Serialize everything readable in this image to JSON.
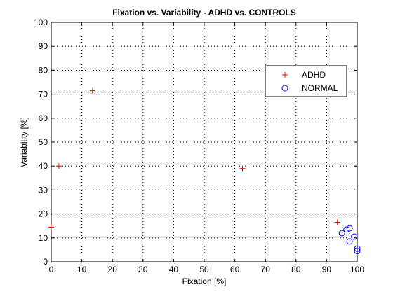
{
  "chart_data": {
    "type": "scatter",
    "title": "Fixation vs. Variability - ADHD vs. CONTROLS",
    "xlabel": "Fixation [%]",
    "ylabel": "Variability [%]",
    "xlim": [
      0,
      100
    ],
    "ylim": [
      0,
      100
    ],
    "xticks": [
      0,
      10,
      20,
      30,
      40,
      50,
      60,
      70,
      80,
      90,
      100
    ],
    "yticks": [
      0,
      10,
      20,
      30,
      40,
      50,
      60,
      70,
      80,
      90,
      100
    ],
    "grid": true,
    "grid_style": "dotted",
    "legend_position": "upper-right-inside",
    "series": [
      {
        "name": "ADHD",
        "marker": "plus",
        "color": "#ff0000",
        "points": [
          {
            "x": 0,
            "y": 14.5
          },
          {
            "x": 2.5,
            "y": 40
          },
          {
            "x": 13.5,
            "y": 71.5
          },
          {
            "x": 62.5,
            "y": 39
          },
          {
            "x": 93.5,
            "y": 16.5
          }
        ]
      },
      {
        "name": "NORMAL",
        "marker": "circle",
        "color": "#0000ff",
        "points": [
          {
            "x": 95,
            "y": 12
          },
          {
            "x": 96.5,
            "y": 13.5
          },
          {
            "x": 97.5,
            "y": 14
          },
          {
            "x": 97.5,
            "y": 8.5
          },
          {
            "x": 99,
            "y": 10.5
          },
          {
            "x": 100,
            "y": 5.5
          },
          {
            "x": 100,
            "y": 4.5
          }
        ]
      }
    ]
  }
}
